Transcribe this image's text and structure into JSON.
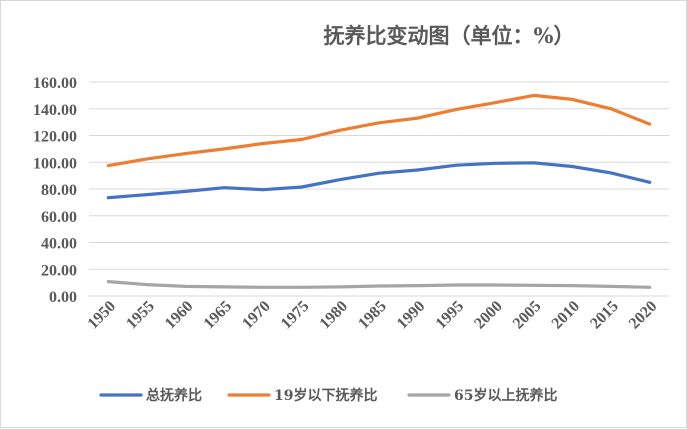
{
  "chart_data": {
    "type": "line",
    "title": "抚养比变动图（单位：%）",
    "x": [
      "1950",
      "1955",
      "1960",
      "1965",
      "1970",
      "1975",
      "1980",
      "1985",
      "1990",
      "1995",
      "2000",
      "2005",
      "2010",
      "2015",
      "2020"
    ],
    "y_ticks": [
      "0.00",
      "20.00",
      "40.00",
      "60.00",
      "80.00",
      "100.00",
      "120.00",
      "140.00",
      "160.00"
    ],
    "ylim": [
      0,
      160
    ],
    "grid": true,
    "legend_position": "bottom",
    "series": [
      {
        "name": "总抚养比",
        "color": "#4472c4",
        "values": [
          73.5,
          75.8,
          78.2,
          81.0,
          79.5,
          81.5,
          87.0,
          91.8,
          94.2,
          97.8,
          99.2,
          99.6,
          96.8,
          92.0,
          85.0
        ]
      },
      {
        "name": "19岁以下抚养比",
        "color": "#ed7d31",
        "values": [
          97.5,
          102.5,
          106.5,
          110.0,
          114.0,
          117.0,
          124.0,
          129.5,
          133.0,
          139.5,
          144.5,
          150.0,
          147.0,
          140.0,
          128.5
        ]
      },
      {
        "name": "65岁以上抚养比",
        "color": "#a5a5a5",
        "values": [
          10.8,
          8.5,
          7.2,
          6.8,
          6.5,
          6.5,
          6.8,
          7.5,
          7.8,
          8.2,
          8.2,
          8.0,
          7.8,
          7.2,
          6.5
        ]
      }
    ]
  }
}
